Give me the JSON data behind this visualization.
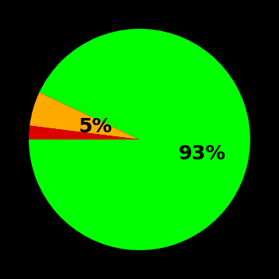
{
  "slices": [
    93,
    5,
    2
  ],
  "colors": [
    "#00ff00",
    "#ffaa00",
    "#dd0000"
  ],
  "labels": [
    "93%",
    "5%",
    ""
  ],
  "background_color": "#000000",
  "label_fontsize": 18,
  "label_color": "#000000",
  "startangle": 180
}
